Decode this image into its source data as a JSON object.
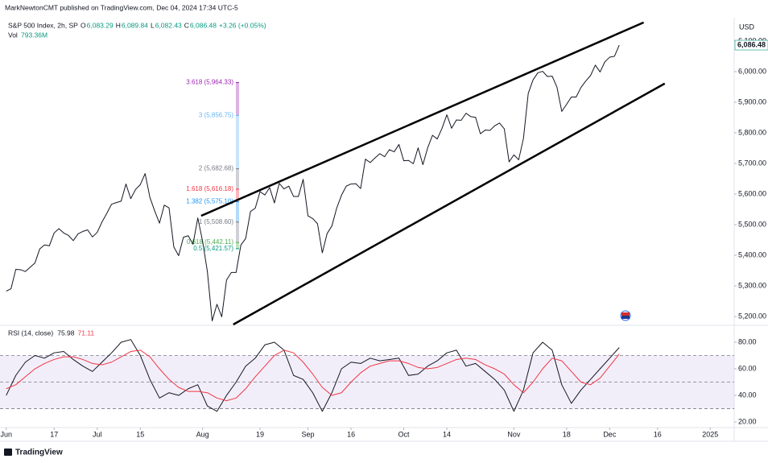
{
  "header": {
    "publisher": "MarkNewtonCMT published on TradingView.com, Dec 04, 2024 17:34 UTC-5",
    "symbol": "S&P 500 Index, 2h, SP",
    "ohlc": [
      [
        "O",
        "6,083.29"
      ],
      [
        "H",
        "6,089.84"
      ],
      [
        "L",
        "6,082.43"
      ],
      [
        "C",
        "6,086.48"
      ]
    ],
    "change": "+3.26 (+0.05%)",
    "volume_label": "Vol",
    "volume_value": "793.36M",
    "currency": "USD",
    "brand": "TradingView"
  },
  "chart_data": [
    {
      "type": "line",
      "x": [
        0,
        1,
        2,
        3,
        4,
        5,
        6,
        7,
        8,
        9,
        10,
        11,
        12,
        13,
        14,
        15,
        16,
        17,
        18,
        19,
        20,
        21,
        22,
        23,
        24,
        25,
        26,
        27,
        28,
        29,
        30,
        31,
        32,
        33,
        34,
        35,
        36,
        37,
        38,
        39,
        40,
        41,
        42,
        43,
        44,
        45,
        46,
        47,
        48,
        49,
        50,
        51,
        52,
        53,
        54,
        55,
        56,
        57,
        58,
        59,
        60,
        61,
        62,
        63,
        64,
        65,
        66,
        67,
        68,
        69,
        70,
        71,
        72,
        73,
        74,
        75,
        76,
        77,
        78,
        79,
        80,
        81,
        82,
        83,
        84,
        85,
        86,
        87,
        88,
        89,
        90,
        91,
        92,
        93,
        94,
        95,
        96,
        97,
        98,
        99,
        100,
        101,
        102,
        103,
        104,
        105,
        106,
        107,
        108,
        109,
        110,
        111,
        112,
        113,
        114,
        115,
        116,
        117,
        118,
        119,
        120,
        121,
        122,
        123,
        124,
        125,
        126,
        127,
        128
      ],
      "series": [
        {
          "color": "#131722",
          "values": [
            5283,
            5291,
            5354,
            5353,
            5347,
            5361,
            5375,
            5421,
            5434,
            5431,
            5473,
            5487,
            5473,
            5465,
            5448,
            5470,
            5478,
            5483,
            5460,
            5475,
            5509,
            5537,
            5567,
            5572,
            5577,
            5633,
            5585,
            5615,
            5631,
            5667,
            5589,
            5545,
            5505,
            5564,
            5555,
            5427,
            5399,
            5459,
            5464,
            5436,
            5522,
            5446,
            5347,
            5186,
            5240,
            5199,
            5319,
            5344,
            5344,
            5434,
            5455,
            5543,
            5554,
            5608,
            5597,
            5621,
            5571,
            5635,
            5617,
            5626,
            5592,
            5592,
            5648,
            5529,
            5520,
            5503,
            5408,
            5471,
            5496,
            5554,
            5596,
            5626,
            5633,
            5634,
            5618,
            5714,
            5703,
            5718,
            5732,
            5722,
            5745,
            5738,
            5762,
            5709,
            5710,
            5699,
            5751,
            5696,
            5751,
            5792,
            5780,
            5815,
            5859,
            5815,
            5842,
            5841,
            5864,
            5853,
            5851,
            5797,
            5809,
            5808,
            5823,
            5832,
            5813,
            5705,
            5728,
            5712,
            5782,
            5929,
            5973,
            5996,
            6001,
            5984,
            5985,
            5949,
            5870,
            5893,
            5917,
            5917,
            5948,
            5969,
            5987,
            6021,
            5999,
            6032,
            6047,
            6050,
            6086.48
          ]
        }
      ],
      "xlim": [
        -1.3,
        152
      ],
      "ylim": [
        5174,
        6176
      ],
      "yticks": [
        {
          "value": 5200,
          "label": "5,200.00"
        },
        {
          "value": 5300,
          "label": "5,300.00"
        },
        {
          "value": 5400,
          "label": "5,400.00"
        },
        {
          "value": 5500,
          "label": "5,500.00"
        },
        {
          "value": 5600,
          "label": "5,600.00"
        },
        {
          "value": 5700,
          "label": "5,700.00"
        },
        {
          "value": 5800,
          "label": "5,800.00"
        },
        {
          "value": 5900,
          "label": "5,900.00"
        },
        {
          "value": 6000,
          "label": "6,000.00"
        },
        {
          "value": 6100,
          "label": "6,100.00"
        }
      ],
      "last_price": {
        "value": 6086.48,
        "label": "6,086.48"
      },
      "grid": false,
      "fib_levels": [
        {
          "value": 5964.33,
          "label": "3.618 (5,964.33)",
          "color": "#9c27b0"
        },
        {
          "value": 5856.75,
          "label": "3 (5,856.75)",
          "color": "#64b5f6"
        },
        {
          "value": 5682.68,
          "label": "2 (5,682.68)",
          "color": "#787b86"
        },
        {
          "value": 5616.18,
          "label": "1.618 (5,616.18)",
          "color": "#f23645"
        },
        {
          "value": 5575.1,
          "label": "1.382 (5,575.10)",
          "color": "#2196f3"
        },
        {
          "value": 5508.6,
          "label": "1 (5,508.60)",
          "color": "#787b86"
        },
        {
          "value": 5442.11,
          "label": "0.618 (5,442.11)",
          "color": "#4caf50"
        },
        {
          "value": 5421.57,
          "label": "0.5 (5,421.57)",
          "color": "#089981"
        }
      ],
      "trendlines": [
        {
          "x": [
            40.7,
            133.1
          ],
          "y": [
            5529,
            6160.5
          ]
        },
        {
          "x": [
            47.4,
            137.5
          ],
          "y": [
            5174,
            5961
          ]
        }
      ]
    },
    {
      "type": "line",
      "title": "RSI (14, close)",
      "x": [
        0,
        2,
        4,
        6,
        8,
        10,
        12,
        14,
        16,
        18,
        20,
        22,
        24,
        26,
        28,
        30,
        32,
        34,
        36,
        38,
        40,
        42,
        44,
        46,
        48,
        50,
        52,
        54,
        56,
        58,
        60,
        62,
        64,
        66,
        68,
        70,
        72,
        74,
        76,
        78,
        80,
        82,
        84,
        86,
        88,
        90,
        92,
        94,
        96,
        98,
        100,
        102,
        104,
        106,
        108,
        110,
        112,
        114,
        116,
        118,
        120,
        122,
        124,
        126,
        128
      ],
      "series": [
        {
          "color": "#131722",
          "values": [
            40,
            55,
            65,
            70,
            68,
            72,
            73,
            67,
            62,
            58,
            65,
            72,
            80,
            82,
            70,
            52,
            38,
            42,
            40,
            45,
            48,
            32,
            28,
            40,
            50,
            62,
            68,
            78,
            80,
            74,
            55,
            52,
            42,
            28,
            42,
            60,
            65,
            64,
            68,
            66,
            67,
            68,
            55,
            56,
            62,
            66,
            72,
            74,
            62,
            64,
            58,
            52,
            44,
            28,
            44,
            72,
            80,
            74,
            48,
            34,
            44,
            52,
            60,
            68,
            75.98
          ]
        },
        {
          "color": "#f23645",
          "values": [
            45,
            48,
            54,
            60,
            64,
            67,
            69,
            69,
            67,
            64,
            63,
            65,
            69,
            73,
            74,
            69,
            60,
            52,
            46,
            43,
            43,
            42,
            38,
            36,
            38,
            45,
            54,
            62,
            70,
            74,
            72,
            65,
            56,
            46,
            40,
            42,
            50,
            57,
            62,
            64,
            66,
            66,
            64,
            61,
            60,
            61,
            64,
            67,
            68,
            67,
            63,
            60,
            56,
            48,
            42,
            50,
            60,
            68,
            66,
            58,
            50,
            48,
            53,
            62,
            71.11
          ]
        }
      ],
      "xlim": [
        -1.3,
        152
      ],
      "ylim": [
        16.4,
        92.1
      ],
      "yticks": [
        {
          "value": 20,
          "label": "20.00"
        },
        {
          "value": 40,
          "label": "40.00"
        },
        {
          "value": 60,
          "label": "60.00"
        },
        {
          "value": 80,
          "label": "80.00"
        }
      ],
      "levels": [
        70,
        50,
        30
      ],
      "band_color": "#7e57c2",
      "xticks": [
        {
          "value": 0,
          "label": "Jun"
        },
        {
          "value": 10,
          "label": "17"
        },
        {
          "value": 19,
          "label": "Jul"
        },
        {
          "value": 28,
          "label": "15"
        },
        {
          "value": 41,
          "label": "Aug"
        },
        {
          "value": 53,
          "label": "19"
        },
        {
          "value": 63,
          "label": "Sep"
        },
        {
          "value": 72,
          "label": "16"
        },
        {
          "value": 83,
          "label": "Oct"
        },
        {
          "value": 92,
          "label": "14"
        },
        {
          "value": 106,
          "label": "Nov"
        },
        {
          "value": 117,
          "label": "18"
        },
        {
          "value": 126,
          "label": "Dec"
        },
        {
          "value": 136,
          "label": "16"
        },
        {
          "value": 147,
          "label": "2025"
        }
      ]
    }
  ]
}
